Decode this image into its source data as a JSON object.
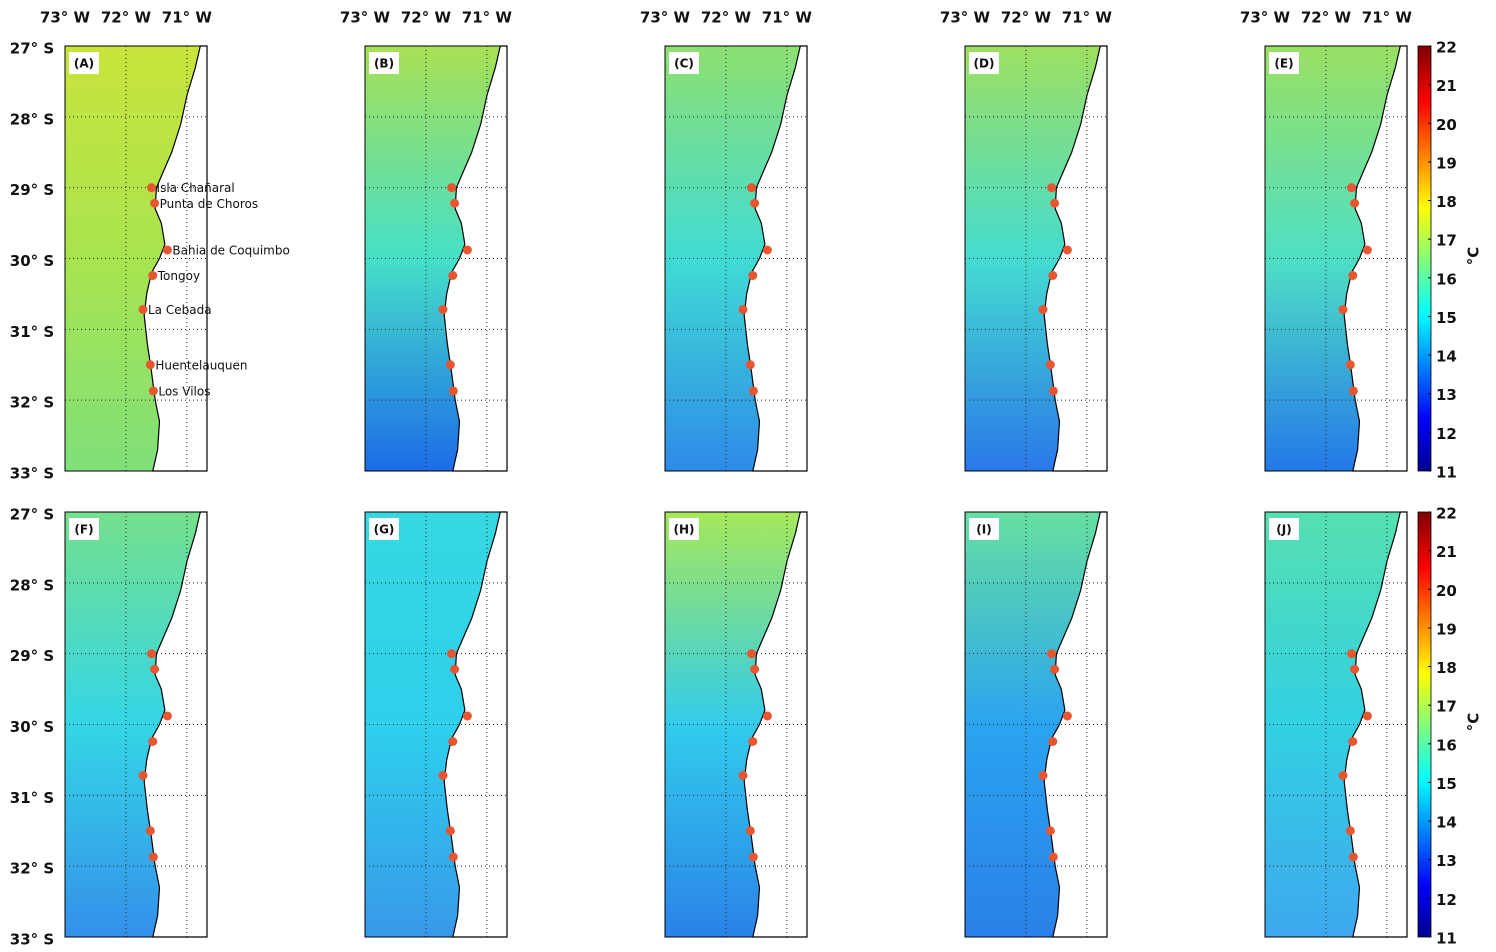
{
  "panels": [
    "(A)",
    "(B)",
    "(C)",
    "(D)",
    "(E)",
    "(F)",
    "(G)",
    "(H)",
    "(I)",
    "(J)"
  ],
  "map": {
    "xlim": [
      73,
      70.67
    ],
    "ylim": [
      27,
      33
    ],
    "xticks": [
      {
        "value": 73,
        "label": "73° W"
      },
      {
        "value": 72,
        "label": "72° W"
      },
      {
        "value": 71,
        "label": "71° W"
      }
    ],
    "yticks": [
      {
        "value": 27,
        "label": "27° S"
      },
      {
        "value": 28,
        "label": "28° S"
      },
      {
        "value": 29,
        "label": "29° S"
      },
      {
        "value": 30,
        "label": "30° S"
      },
      {
        "value": 31,
        "label": "31° S"
      },
      {
        "value": 32,
        "label": "32° S"
      },
      {
        "value": 33,
        "label": "33° S"
      }
    ],
    "sites": [
      {
        "name": "Isla Chañaral",
        "lon": 71.58,
        "lat": 29.0
      },
      {
        "name": "Punta de Choros",
        "lon": 71.53,
        "lat": 29.22
      },
      {
        "name": "Bahia de Coquimbo",
        "lon": 71.32,
        "lat": 29.88
      },
      {
        "name": "Tongoy",
        "lon": 71.56,
        "lat": 30.24
      },
      {
        "name": "La Cebada",
        "lon": 71.72,
        "lat": 30.72
      },
      {
        "name": "Huentelauquen",
        "lon": 71.6,
        "lat": 31.5
      },
      {
        "name": "Los Vilos",
        "lon": 71.55,
        "lat": 31.87
      }
    ]
  },
  "colorbar": {
    "lim": [
      11,
      22
    ],
    "ticks": [
      11,
      12,
      13,
      14,
      15,
      16,
      17,
      18,
      19,
      20,
      21,
      22
    ],
    "unit": "°C"
  }
}
